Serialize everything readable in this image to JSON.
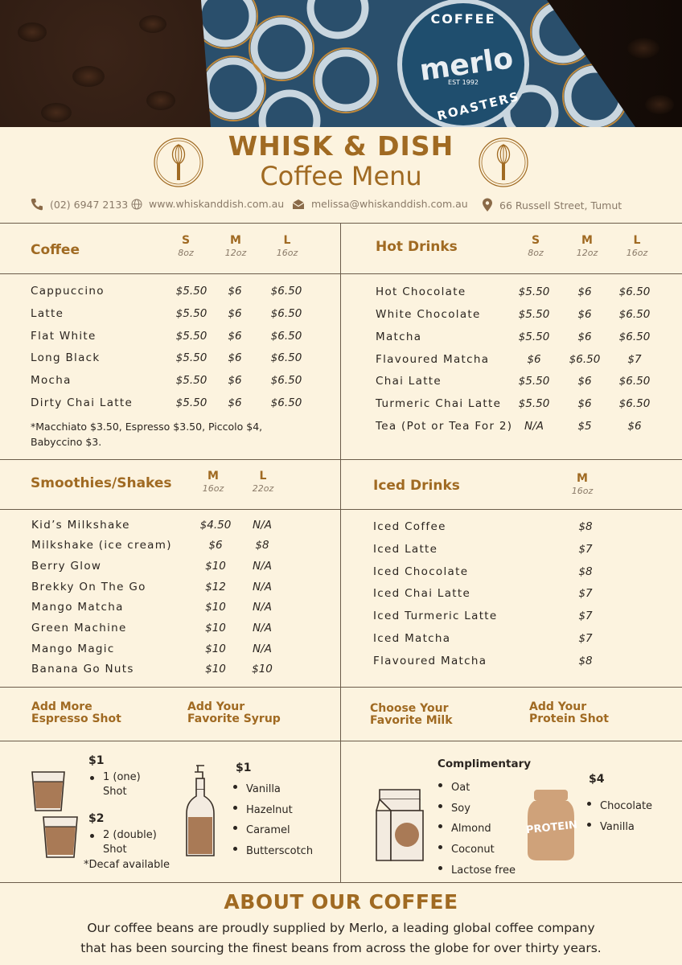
{
  "hero": {
    "bag_top_text": "COFFEE",
    "bag_brand": "merlo",
    "bag_est": "EST 1992",
    "bag_bottom_text": "ROASTERS"
  },
  "header": {
    "title": "WHISK & DISH",
    "subtitle": "Coffee Menu",
    "phone": "(02) 6947 2133",
    "website": "www.whiskanddish.com.au",
    "email": "melissa@whiskanddish.com.au",
    "address": "66 Russell Street, Tumut"
  },
  "coffee": {
    "title": "Coffee",
    "sizes": [
      {
        "label": "S",
        "oz": "8oz"
      },
      {
        "label": "M",
        "oz": "12oz"
      },
      {
        "label": "L",
        "oz": "16oz"
      }
    ],
    "items": [
      {
        "name": "Cappuccino",
        "s": "$5.50",
        "m": "$6",
        "l": "$6.50"
      },
      {
        "name": "Latte",
        "s": "$5.50",
        "m": "$6",
        "l": "$6.50"
      },
      {
        "name": "Flat White",
        "s": "$5.50",
        "m": "$6",
        "l": "$6.50"
      },
      {
        "name": "Long Black",
        "s": "$5.50",
        "m": "$6",
        "l": "$6.50"
      },
      {
        "name": "Mocha",
        "s": "$5.50",
        "m": "$6",
        "l": "$6.50"
      },
      {
        "name": "Dirty Chai Latte",
        "s": "$5.50",
        "m": "$6",
        "l": "$6.50"
      }
    ],
    "note_line1": "*Macchiato $3.50, Espresso $3.50, Piccolo $4,",
    "note_line2": "Babyccino $3."
  },
  "hot_drinks": {
    "title": "Hot Drinks",
    "sizes": [
      {
        "label": "S",
        "oz": "8oz"
      },
      {
        "label": "M",
        "oz": "12oz"
      },
      {
        "label": "L",
        "oz": "16oz"
      }
    ],
    "items": [
      {
        "name": "Hot Chocolate",
        "s": "$5.50",
        "m": "$6",
        "l": "$6.50"
      },
      {
        "name": "White Chocolate",
        "s": "$5.50",
        "m": "$6",
        "l": "$6.50"
      },
      {
        "name": "Matcha",
        "s": "$5.50",
        "m": "$6",
        "l": "$6.50"
      },
      {
        "name": "Flavoured Matcha",
        "s": "$6",
        "m": "$6.50",
        "l": "$7"
      },
      {
        "name": "Chai Latte",
        "s": "$5.50",
        "m": "$6",
        "l": "$6.50"
      },
      {
        "name": "Turmeric Chai Latte",
        "s": "$5.50",
        "m": "$6",
        "l": "$6.50"
      },
      {
        "name": "Tea (Pot or Tea For 2)",
        "s": "N/A",
        "m": "$5",
        "l": "$6"
      }
    ]
  },
  "smoothies": {
    "title": "Smoothies/Shakes",
    "sizes": [
      {
        "label": "M",
        "oz": "16oz"
      },
      {
        "label": "L",
        "oz": "22oz"
      }
    ],
    "items": [
      {
        "name": "Kid’s Milkshake",
        "m": "$4.50",
        "l": "N/A"
      },
      {
        "name": "Milkshake (ice cream)",
        "m": "$6",
        "l": "$8"
      },
      {
        "name": "Berry Glow",
        "m": "$10",
        "l": "N/A"
      },
      {
        "name": "Brekky On The Go",
        "m": "$12",
        "l": "N/A"
      },
      {
        "name": "Mango Matcha",
        "m": "$10",
        "l": "N/A"
      },
      {
        "name": "Green Machine",
        "m": "$10",
        "l": "N/A"
      },
      {
        "name": "Mango Magic",
        "m": "$10",
        "l": "N/A"
      },
      {
        "name": "Banana Go Nuts",
        "m": "$10",
        "l": "$10"
      }
    ]
  },
  "iced": {
    "title": "Iced Drinks",
    "sizes": [
      {
        "label": "M",
        "oz": "16oz"
      }
    ],
    "items": [
      {
        "name": "Iced Coffee",
        "m": "$8"
      },
      {
        "name": "Iced Latte",
        "m": "$7"
      },
      {
        "name": "Iced Chocolate",
        "m": "$8"
      },
      {
        "name": "Iced Chai Latte",
        "m": "$7"
      },
      {
        "name": "Iced Turmeric Latte",
        "m": "$7"
      },
      {
        "name": "Iced Matcha",
        "m": "$7"
      },
      {
        "name": "Flavoured Matcha",
        "m": "$8"
      }
    ]
  },
  "addons": {
    "espresso": {
      "title_line1": "Add More",
      "title_line2": "Espresso Shot",
      "single_price": "$1",
      "single_line1": "1 (one)",
      "single_line2": "Shot",
      "double_price": "$2",
      "double_line1": "2 (double)",
      "double_line2": "Shot",
      "decaf_note": "*Decaf available"
    },
    "syrup": {
      "title_line1": "Add Your",
      "title_line2": "Favorite Syrup",
      "price": "$1",
      "options": [
        "Vanilla",
        "Hazelnut",
        "Caramel",
        "Butterscotch"
      ]
    },
    "milk": {
      "title_line1": "Choose Your",
      "title_line2": "Favorite Milk",
      "price_label": "Complimentary",
      "options": [
        "Oat",
        "Soy",
        "Almond",
        "Coconut",
        "Lactose free"
      ]
    },
    "protein": {
      "title_line1": "Add Your",
      "title_line2": "Protein Shot",
      "price": "$4",
      "jar_label": "PROTEIN",
      "options": [
        "Chocolate",
        "Vanilla"
      ]
    }
  },
  "about": {
    "title": "ABOUT OUR COFFEE",
    "line1": "Our coffee beans are proudly supplied by Merlo, a leading global coffee company",
    "line2": "that has been sourcing the finest beans from across the globe for over thirty years."
  },
  "colors": {
    "background": "#fcf3df",
    "accent": "#a06a22",
    "text": "#2b2520",
    "bag_blue": "#1f4e6e"
  }
}
